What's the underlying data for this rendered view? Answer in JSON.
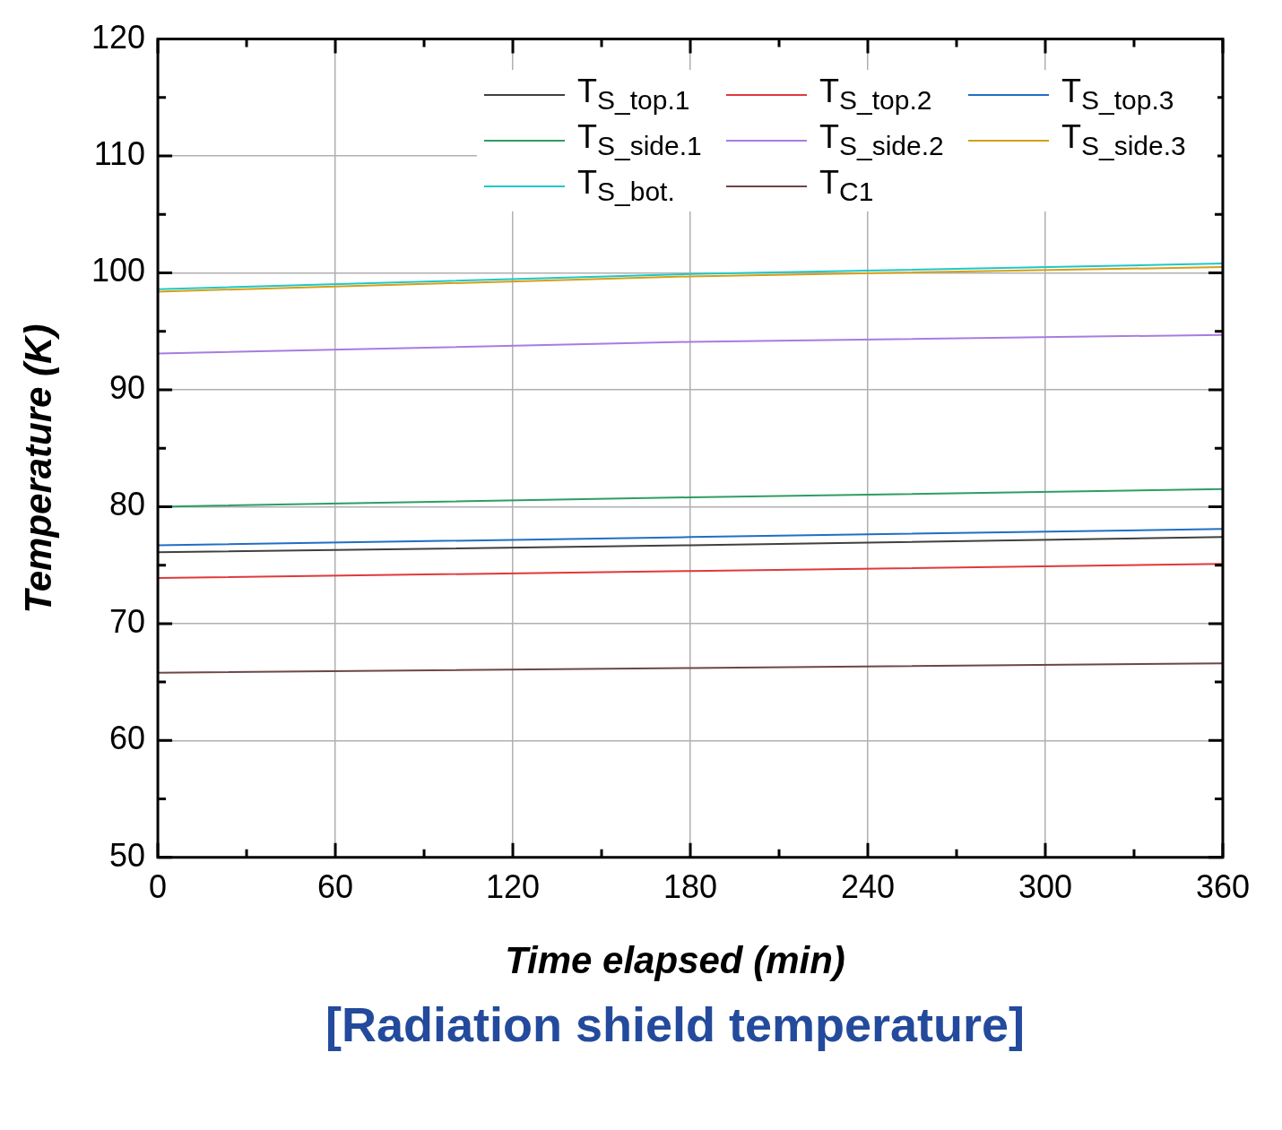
{
  "chart_data": {
    "type": "line",
    "title": "[Radiation shield temperature]",
    "xlabel": "Time elapsed (min)",
    "ylabel": "Temperature (K)",
    "x": [
      0,
      180,
      360
    ],
    "series": [
      {
        "name": "T$_{S_top.1}$",
        "color": "#404040",
        "values": [
          76.1,
          76.7,
          77.4
        ]
      },
      {
        "name": "T$_{S_top.2}$",
        "color": "#e0393b",
        "values": [
          73.9,
          74.5,
          75.1
        ]
      },
      {
        "name": "T$_{S_top.3}$",
        "color": "#1f6fc5",
        "values": [
          76.7,
          77.4,
          78.1
        ]
      },
      {
        "name": "T$_{S_side.1}$",
        "color": "#2e9e62",
        "values": [
          80.0,
          80.8,
          81.5
        ]
      },
      {
        "name": "T$_{S_side.2}$",
        "color": "#a77de0",
        "values": [
          93.1,
          94.1,
          94.7
        ]
      },
      {
        "name": "T$_{S_side.3}$",
        "color": "#d4a017",
        "values": [
          98.4,
          99.7,
          100.5
        ]
      },
      {
        "name": "T$_{S_bot.}$",
        "color": "#1fc8c8",
        "values": [
          98.6,
          99.9,
          100.8
        ]
      },
      {
        "name": "T$_{C1}$",
        "color": "#6e4646",
        "values": [
          65.8,
          66.2,
          66.6
        ]
      }
    ],
    "xlim": [
      0,
      360
    ],
    "xticks": [
      0,
      {
        "value": 30,
        "label": null
      },
      60,
      {
        "value": 90,
        "label": null
      },
      120,
      {
        "value": 150,
        "label": null
      },
      180,
      {
        "value": 210,
        "label": null
      },
      240,
      {
        "value": 270,
        "label": null
      },
      300,
      {
        "value": 330,
        "label": null
      },
      360
    ],
    "ylim": [
      50,
      120
    ],
    "yticks": [
      50,
      {
        "value": 55,
        "label": null
      },
      60,
      {
        "value": 65,
        "label": null
      },
      70,
      {
        "value": 75,
        "label": null
      },
      80,
      {
        "value": 85,
        "label": null
      },
      90,
      {
        "value": 95,
        "label": null
      },
      100,
      {
        "value": 105,
        "label": null
      },
      110,
      {
        "value": 115,
        "label": null
      },
      120
    ],
    "grid": true,
    "legend": "top right",
    "marker": "none",
    "line_style": "solid"
  }
}
